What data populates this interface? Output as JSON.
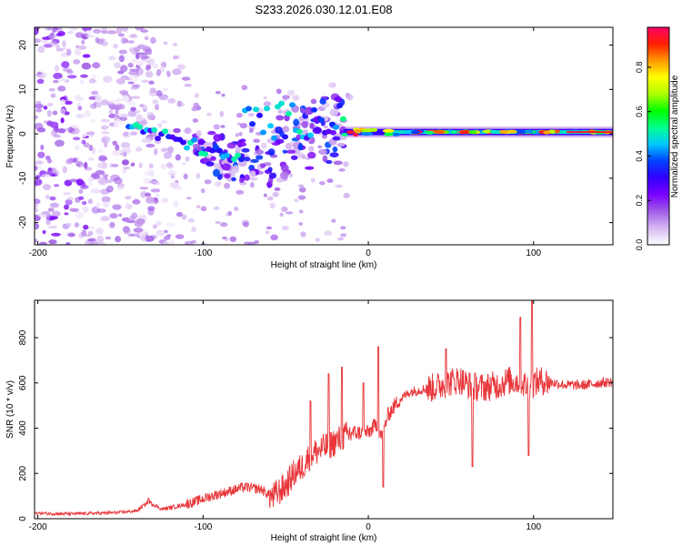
{
  "figure": {
    "title": "S233.2026.030.12.01.E08"
  },
  "chart_data": [
    {
      "type": "heatmap",
      "id": "spectrogram",
      "xlabel": "Height of straight line (km)",
      "ylabel": "Frequency (Hz)",
      "xlim": [
        -202,
        148
      ],
      "ylim": [
        -25,
        24
      ],
      "x_ticks": [
        -200,
        -100,
        0,
        100
      ],
      "y_ticks": [
        -20,
        -10,
        0,
        10,
        20
      ],
      "colorbar": {
        "label": "Normalized spectral amplitude",
        "range": [
          0,
          0.98
        ],
        "ticks": [
          "0.0",
          "0.2",
          "0.4",
          "0.6",
          "0.8"
        ],
        "tick_values": [
          0.0,
          0.2,
          0.4,
          0.6,
          0.8
        ],
        "colors": [
          "#ffffff",
          "#d7b8f2",
          "#a05ce6",
          "#7a00ff",
          "#3300ff",
          "#0040ff",
          "#00c8ff",
          "#00ff90",
          "#00ff00",
          "#aaff00",
          "#ffff00",
          "#ff9900",
          "#ff2000",
          "#ff0066"
        ]
      },
      "features": [
        {
          "name": "noise-field",
          "x_range": [
            -202,
            -105
          ],
          "y_range": [
            -25,
            24
          ],
          "amplitude": [
            0.02,
            0.2
          ]
        },
        {
          "name": "scattered-blobs",
          "x_range": [
            -105,
            -15
          ],
          "y_range": [
            -14,
            9
          ],
          "amplitude": [
            0.05,
            0.4
          ]
        },
        {
          "name": "main-band",
          "x_range": [
            -15,
            148
          ],
          "y_center": 0.4,
          "amplitude": [
            0.35,
            0.98
          ]
        }
      ]
    },
    {
      "type": "line",
      "id": "snr",
      "xlabel": "Height of straight line (km)",
      "ylabel": "SNR (10 * v/v)",
      "xlim": [
        -202,
        148
      ],
      "ylim": [
        0,
        965
      ],
      "x_ticks": [
        -200,
        -100,
        0,
        100
      ],
      "y_ticks": [
        0,
        200,
        400,
        600,
        800
      ],
      "line_color": "#e8363a",
      "series": [
        {
          "name": "SNR",
          "x": [
            -200,
            -190,
            -180,
            -170,
            -160,
            -150,
            -140,
            -133,
            -125,
            -115,
            -105,
            -95,
            -85,
            -75,
            -65,
            -58,
            -50,
            -45,
            -40,
            -35,
            -30,
            -25,
            -20,
            -15,
            -10,
            -5,
            0,
            5,
            8,
            12,
            18,
            25,
            32,
            40,
            48,
            55,
            62,
            70,
            78,
            85,
            92,
            97,
            100,
            105,
            112,
            120,
            130,
            140,
            148
          ],
          "y": [
            25,
            22,
            22,
            23,
            25,
            28,
            35,
            75,
            42,
            55,
            75,
            100,
            120,
            140,
            130,
            95,
            145,
            200,
            230,
            285,
            300,
            320,
            340,
            360,
            380,
            380,
            380,
            420,
            360,
            460,
            520,
            560,
            570,
            580,
            600,
            615,
            585,
            580,
            590,
            610,
            605,
            580,
            600,
            610,
            600,
            590,
            590,
            600,
            605
          ],
          "spikes": [
            {
              "x": -133,
              "y": 90
            },
            {
              "x": -35,
              "y": 520
            },
            {
              "x": -24,
              "y": 640
            },
            {
              "x": -16,
              "y": 670
            },
            {
              "x": -3,
              "y": 600
            },
            {
              "x": 6,
              "y": 760
            },
            {
              "x": 9,
              "y": 140
            },
            {
              "x": 47,
              "y": 750
            },
            {
              "x": 63,
              "y": 230
            },
            {
              "x": 92,
              "y": 890
            },
            {
              "x": 97,
              "y": 280
            },
            {
              "x": 99,
              "y": 965
            }
          ]
        }
      ]
    }
  ]
}
